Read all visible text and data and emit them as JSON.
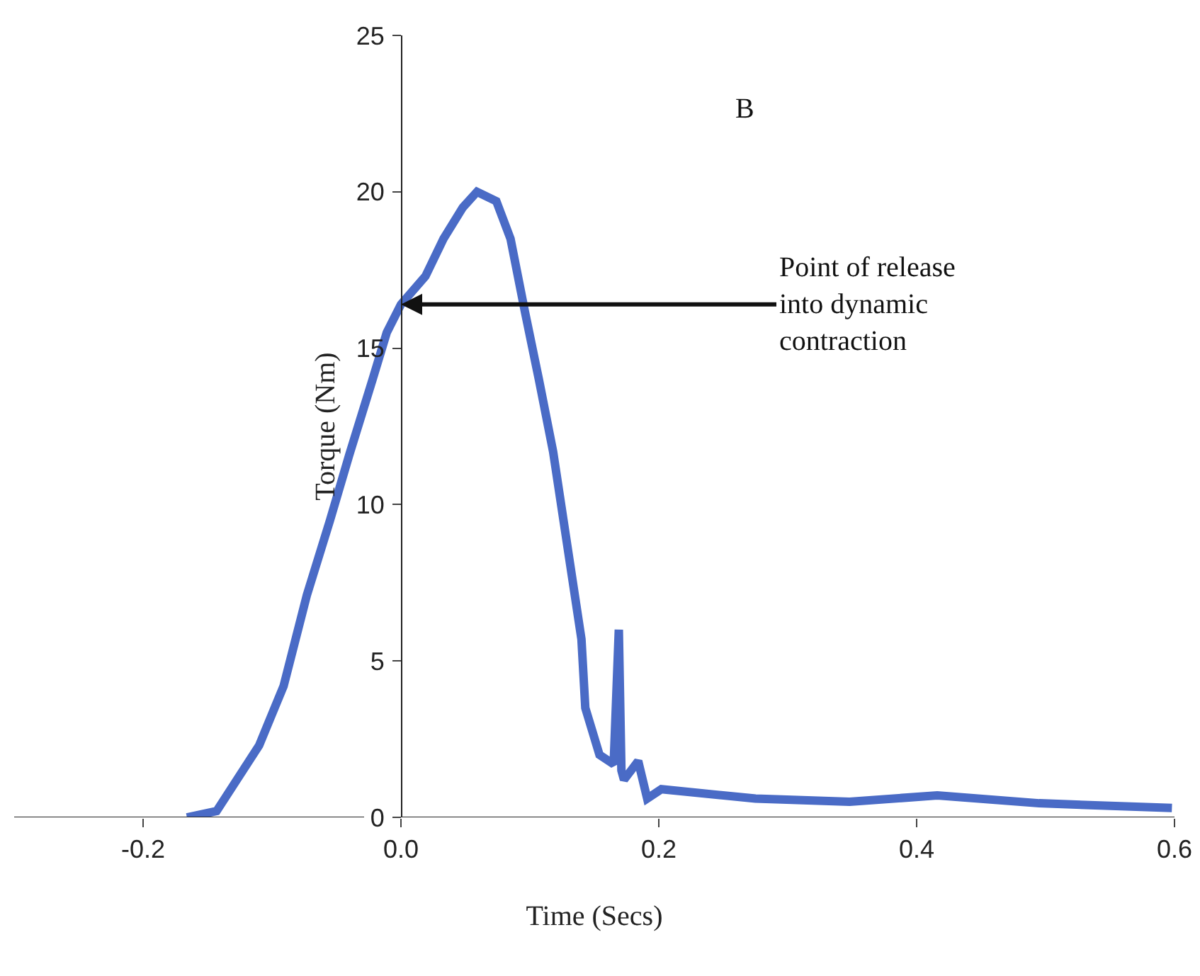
{
  "chart_data": {
    "type": "line",
    "xlabel": "Time (Secs)",
    "ylabel": "Torque (Nm)",
    "x": [
      -0.166,
      -0.143,
      -0.11,
      -0.091,
      -0.073,
      -0.055,
      -0.04,
      -0.022,
      -0.011,
      0.0,
      0.019,
      0.033,
      0.048,
      0.059,
      0.074,
      0.085,
      0.096,
      0.107,
      0.118,
      0.129,
      0.14,
      0.143,
      0.154,
      0.165,
      0.169,
      0.171,
      0.173,
      0.184,
      0.191,
      0.202,
      0.275,
      0.348,
      0.416,
      0.495,
      0.598
    ],
    "series": [
      {
        "color": "#4a6bc6",
        "values": [
          0,
          0.2,
          2.3,
          4.2,
          7.1,
          9.5,
          11.6,
          14.0,
          15.5,
          16.4,
          17.3,
          18.5,
          19.5,
          20.0,
          19.7,
          18.5,
          16.2,
          14.0,
          11.7,
          8.7,
          5.7,
          3.5,
          2.0,
          1.7,
          6.0,
          1.5,
          1.2,
          1.8,
          0.6,
          0.9,
          0.6,
          0.5,
          0.7,
          0.45,
          0.3
        ]
      }
    ],
    "xlim": [
      -0.3,
      0.6
    ],
    "xticks": [
      -0.2,
      {
        "value": 0,
        "label": "0.0"
      },
      0.2,
      0.4,
      0.6
    ],
    "ylim": [
      0,
      25
    ],
    "yticks": [
      0,
      5,
      10,
      15,
      20,
      25
    ],
    "grid": false,
    "marker": "none",
    "line_style": "solid",
    "annotations": [
      {
        "text": "Point of release\ninto dynamic\ncontraction",
        "x": 0,
        "y": 16.4
      },
      "B"
    ]
  }
}
